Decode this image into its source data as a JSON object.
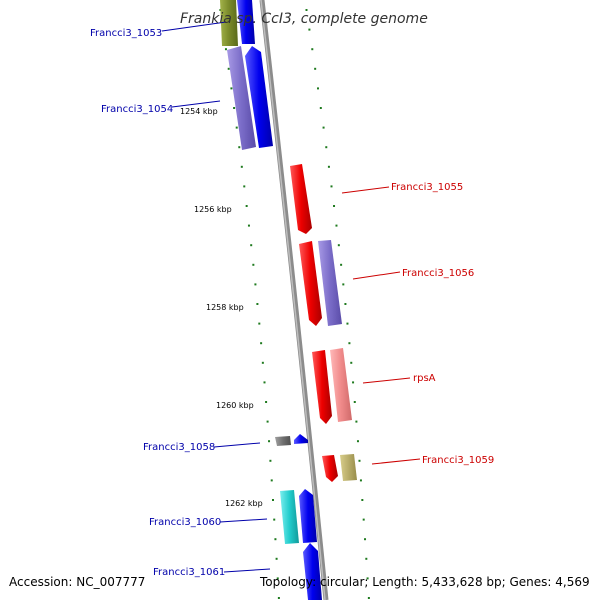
{
  "title": "Frankia sp. CcI3, complete genome",
  "footer": {
    "accession": "Accession: NC_007777",
    "summary": "Topology: circular; Length: 5,433,628 bp; Genes: 4,569"
  },
  "ticks": [
    {
      "label": "1254 kbp",
      "pos_kbp": 1254
    },
    {
      "label": "1256 kbp",
      "pos_kbp": 1256
    },
    {
      "label": "1258 kbp",
      "pos_kbp": 1258
    },
    {
      "label": "1260 kbp",
      "pos_kbp": 1260
    },
    {
      "label": "1262 kbp",
      "pos_kbp": 1262
    }
  ],
  "genes": [
    {
      "label": "Francci3_1053",
      "strand": "+",
      "color": "#000099"
    },
    {
      "label": "Francci3_1054",
      "strand": "+",
      "color": "#000099"
    },
    {
      "label": "Francci3_1055",
      "strand": "-",
      "color": "#cc0000"
    },
    {
      "label": "Francci3_1056",
      "strand": "-",
      "color": "#cc0000"
    },
    {
      "label": "rpsA",
      "strand": "-",
      "color": "#cc0000"
    },
    {
      "label": "Francci3_1058",
      "strand": "+",
      "color": "#000099"
    },
    {
      "label": "Francci3_1059",
      "strand": "-",
      "color": "#cc0000"
    },
    {
      "label": "Francci3_1060",
      "strand": "+",
      "color": "#000099"
    },
    {
      "label": "Francci3_1061",
      "strand": "+",
      "color": "#000099"
    }
  ],
  "colors": {
    "backbone": "#8c8c8c",
    "tick_dash": "#1e7a1e",
    "cds_forward": "#0000ee",
    "cds_reverse": "#ee0000",
    "cog_purple": "#7a6cc8",
    "cog_olive": "#7a8a2a",
    "cog_pink": "#f08a8a",
    "cog_khaki": "#b8ad6a",
    "cog_cyan": "#22cccc",
    "cog_grey": "#707070"
  }
}
